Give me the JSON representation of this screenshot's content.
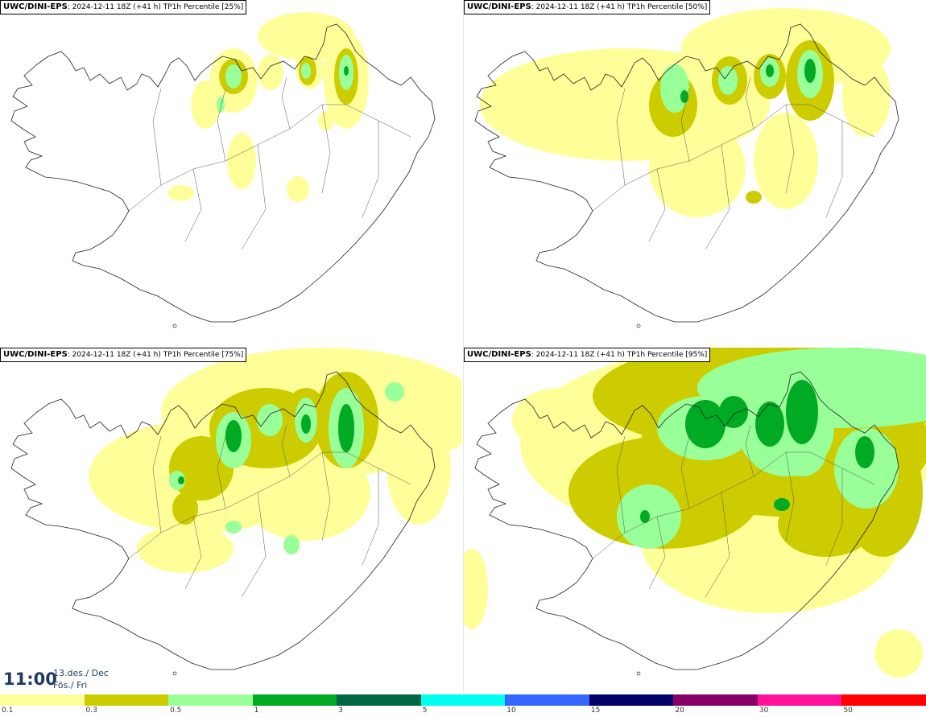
{
  "panels": [
    {
      "source": "UWC/DINI-EPS",
      "info": ": 2024-12-11 18Z (+41 h)",
      "field": "TP1h Percentile",
      "percentile": "[25%]",
      "intensity": 1
    },
    {
      "source": "UWC/DINI-EPS",
      "info": ": 2024-12-11 18Z (+41 h)",
      "field": "TP1h Percentile",
      "percentile": "[50%]",
      "intensity": 2
    },
    {
      "source": "UWC/DINI-EPS",
      "info": ": 2024-12-11 18Z (+41 h)",
      "field": "TP1h Percentile",
      "percentile": "[75%]",
      "intensity": 3
    },
    {
      "source": "UWC/DINI-EPS",
      "info": ": 2024-12-11 18Z (+41 h)",
      "field": "TP1h Percentile",
      "percentile": "[95%]",
      "intensity": 4
    }
  ],
  "time": {
    "clock": "11:00",
    "date": "13.des./ Dec",
    "weekday": "Fös./ Fri"
  },
  "legend": {
    "colors": [
      "#ffff99",
      "#cccc00",
      "#99ff99",
      "#00aa22",
      "#006644",
      "#00ffee",
      "#3366ff",
      "#000066",
      "#880066",
      "#ff1199",
      "#ff0000"
    ],
    "labels": [
      "0.1",
      "0.3",
      "0.5",
      "1",
      "3",
      "5",
      "10",
      "15",
      "20",
      "30",
      "50"
    ]
  }
}
